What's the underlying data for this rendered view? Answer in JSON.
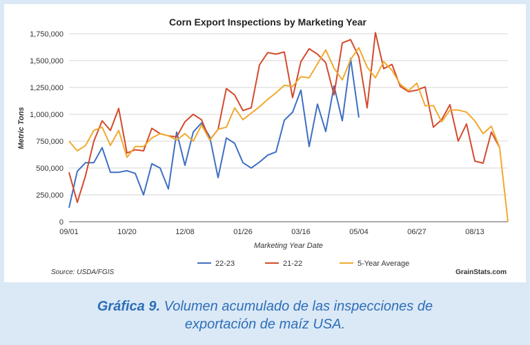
{
  "chart_data": {
    "type": "line",
    "title": "Corn Export Inspections by Marketing Year",
    "xlabel": "Marketing Year Date",
    "ylabel": "Metric Tons",
    "ylim": [
      0,
      1750000
    ],
    "y_ticks": [
      "0",
      "250,000",
      "500,000",
      "750,000",
      "1,000,000",
      "1,250,000",
      "1,500,000",
      "1,750,000"
    ],
    "x_ticks": [
      "09/01",
      "10/20",
      "12/08",
      "01/26",
      "03/16",
      "05/04",
      "06/27",
      "08/13"
    ],
    "x_tick_index": [
      0,
      7,
      14,
      21,
      28,
      35,
      42,
      49
    ],
    "grid": true,
    "legend_position": "bottom",
    "series": [
      {
        "name": "22-23",
        "color": "#3d6fc4",
        "values": [
          130000,
          470000,
          550000,
          550000,
          690000,
          460000,
          460000,
          475000,
          450000,
          250000,
          540000,
          500000,
          305000,
          835000,
          525000,
          835000,
          920000,
          790000,
          410000,
          780000,
          730000,
          550000,
          500000,
          555000,
          620000,
          650000,
          945000,
          1020000,
          1225000,
          700000,
          1095000,
          840000,
          1265000,
          940000,
          1520000,
          970000
        ]
      },
      {
        "name": "21-22",
        "color": "#d24a2c",
        "values": [
          460000,
          180000,
          430000,
          750000,
          940000,
          850000,
          1055000,
          640000,
          670000,
          660000,
          870000,
          820000,
          800000,
          790000,
          930000,
          1000000,
          950000,
          760000,
          860000,
          1240000,
          1180000,
          1035000,
          1060000,
          1460000,
          1575000,
          1560000,
          1580000,
          1155000,
          1490000,
          1610000,
          1560000,
          1480000,
          1180000,
          1665000,
          1695000,
          1535000,
          1060000,
          1760000,
          1425000,
          1465000,
          1260000,
          1210000,
          1225000,
          1255000,
          880000,
          950000,
          1090000,
          750000,
          910000,
          565000,
          545000,
          835000,
          690000
        ]
      },
      {
        "name": "5-Year Average",
        "color": "#f0a92e",
        "values": [
          750000,
          660000,
          710000,
          850000,
          880000,
          710000,
          850000,
          600000,
          700000,
          700000,
          780000,
          820000,
          800000,
          760000,
          820000,
          750000,
          900000,
          760000,
          860000,
          880000,
          1060000,
          950000,
          1010000,
          1070000,
          1140000,
          1200000,
          1270000,
          1260000,
          1350000,
          1340000,
          1470000,
          1600000,
          1430000,
          1320000,
          1510000,
          1620000,
          1440000,
          1340000,
          1490000,
          1410000,
          1280000,
          1220000,
          1290000,
          1080000,
          1080000,
          930000,
          1040000,
          1040000,
          1020000,
          940000,
          820000,
          890000,
          690000,
          0
        ]
      }
    ],
    "source": "Source: USDA/FGIS",
    "credit": "GrainStats.com"
  },
  "caption": {
    "lead": "Gráfica 9.",
    "rest_line1": " Volumen acumulado de las inspecciones de",
    "line2": "exportación de maíz USA."
  }
}
